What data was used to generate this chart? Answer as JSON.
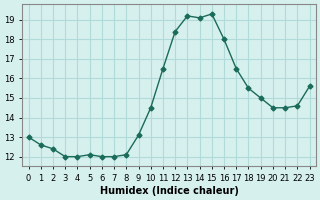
{
  "x": [
    0,
    1,
    2,
    3,
    4,
    5,
    6,
    7,
    8,
    9,
    10,
    11,
    12,
    13,
    14,
    15,
    16,
    17,
    18,
    19,
    20,
    21,
    22,
    23
  ],
  "y": [
    13.0,
    12.6,
    12.4,
    12.0,
    12.0,
    12.1,
    12.0,
    12.0,
    12.1,
    13.1,
    14.5,
    16.5,
    18.4,
    19.2,
    19.1,
    19.3,
    18.0,
    16.5,
    15.5,
    15.0,
    14.5,
    14.5,
    14.6,
    15.6
  ],
  "line_color": "#1a6b5a",
  "marker_color": "#1a6b5a",
  "bg_color": "#d6f0ee",
  "grid_color": "#b0dbd8",
  "xlabel": "Humidex (Indice chaleur)",
  "ylim": [
    11.5,
    19.8
  ],
  "xlim": [
    -0.5,
    23.5
  ],
  "yticks": [
    12,
    13,
    14,
    15,
    16,
    17,
    18,
    19
  ],
  "xticks": [
    0,
    1,
    2,
    3,
    4,
    5,
    6,
    7,
    8,
    9,
    10,
    11,
    12,
    13,
    14,
    15,
    16,
    17,
    18,
    19,
    20,
    21,
    22,
    23
  ],
  "xtick_labels": [
    "0",
    "1",
    "2",
    "3",
    "4",
    "5",
    "6",
    "7",
    "8",
    "9",
    "10",
    "11",
    "12",
    "13",
    "14",
    "15",
    "16",
    "17",
    "18",
    "19",
    "20",
    "21",
    "22",
    "23"
  ]
}
